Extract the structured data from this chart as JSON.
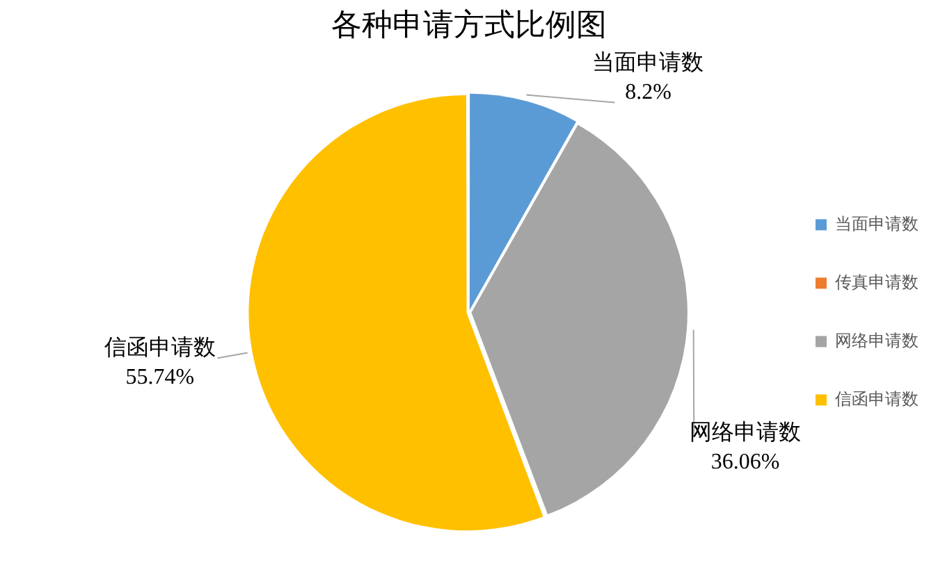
{
  "chart_data": {
    "type": "pie",
    "title": "各种申请方式比例图",
    "categories": [
      "当面申请数",
      "传真申请数",
      "网络申请数",
      "信函申请数"
    ],
    "values": [
      8.2,
      0,
      36.06,
      55.74
    ],
    "colors": [
      "#5b9bd5",
      "#ed7d31",
      "#a5a5a5",
      "#ffc000"
    ],
    "value_labels": [
      "8.2%",
      null,
      "36.06%",
      "55.74%"
    ],
    "legend": "right"
  }
}
